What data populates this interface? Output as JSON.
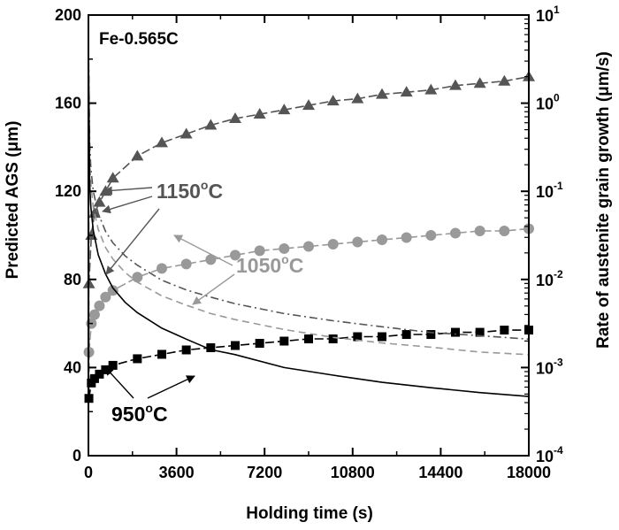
{
  "chart_data": {
    "type": "scatter",
    "sample_label": "Fe-0.565C",
    "xlabel": "Holding time (s)",
    "ylabel_left": "Predicted AGS (μm)",
    "ylabel_right": "Rate of austenite grain growth (μm/s)",
    "x_range": [
      0,
      18000
    ],
    "y_left_range": [
      0,
      200
    ],
    "y_right_range_log10": [
      -4,
      1
    ],
    "x_ticks": [
      0,
      3600,
      7200,
      10800,
      14400,
      18000
    ],
    "y_left_ticks": [
      0,
      40,
      80,
      120,
      160,
      200
    ],
    "y_right_ticks": [
      {
        "base": "10",
        "exp": "1",
        "value": 10
      },
      {
        "base": "10",
        "exp": "0",
        "value": 1
      },
      {
        "base": "10",
        "exp": "-1",
        "value": 0.1
      },
      {
        "base": "10",
        "exp": "-2",
        "value": 0.01
      },
      {
        "base": "10",
        "exp": "-3",
        "value": 0.001
      },
      {
        "base": "10",
        "exp": "-4",
        "value": 0.0001
      }
    ],
    "grid": false,
    "series": [
      {
        "name": "1150°C",
        "axis": "left",
        "marker": "triangle",
        "color": "#555555",
        "x": [
          20,
          120,
          250,
          450,
          700,
          1000,
          2000,
          3000,
          4000,
          5000,
          6000,
          7000,
          8000,
          9000,
          10000,
          11000,
          12000,
          13000,
          14000,
          15000,
          16000,
          17000,
          18000
        ],
        "y": [
          78,
          100,
          110,
          115,
          120,
          126,
          136,
          142,
          146,
          150,
          153,
          155,
          157,
          159,
          161,
          162,
          164,
          165,
          166,
          168,
          169,
          170,
          172
        ]
      },
      {
        "name": "1050°C",
        "axis": "left",
        "marker": "circle",
        "color": "#999999",
        "x": [
          20,
          120,
          250,
          450,
          700,
          1000,
          2000,
          3000,
          4000,
          5000,
          6000,
          7000,
          8000,
          9000,
          10000,
          11000,
          12000,
          13000,
          14000,
          15000,
          16000,
          17000,
          18000
        ],
        "y": [
          47,
          60,
          64,
          68,
          72,
          75,
          81,
          85,
          87,
          89,
          91,
          93,
          94,
          95,
          96,
          97,
          98,
          99,
          100,
          101,
          102,
          102,
          103
        ]
      },
      {
        "name": "950°C",
        "axis": "left",
        "marker": "square",
        "color": "#000000",
        "x": [
          20,
          120,
          250,
          450,
          700,
          1000,
          2000,
          3000,
          4000,
          5000,
          6000,
          7000,
          8000,
          9000,
          10000,
          11000,
          12000,
          13000,
          14000,
          15000,
          16000,
          17000,
          18000
        ],
        "y": [
          26,
          33,
          35,
          37,
          39,
          41,
          44,
          46,
          48,
          49,
          50,
          51,
          52,
          53,
          53,
          54,
          54,
          55,
          55,
          56,
          56,
          57,
          57
        ]
      },
      {
        "name": "1150°C",
        "axis": "right",
        "line": "dash-dot",
        "color": "#555555",
        "x": [
          50,
          100,
          200,
          400,
          700,
          1000,
          1500,
          2000,
          3000,
          4000,
          5000,
          6000,
          8000,
          10000,
          12000,
          14000,
          16000,
          18000
        ],
        "y": [
          0.35,
          0.18,
          0.1,
          0.056,
          0.035,
          0.026,
          0.0185,
          0.0145,
          0.0098,
          0.0076,
          0.0063,
          0.0053,
          0.0041,
          0.0034,
          0.0029,
          0.0025,
          0.0023,
          0.0021
        ]
      },
      {
        "name": "1050°C",
        "axis": "right",
        "line": "dashed",
        "color": "#999999",
        "x": [
          50,
          100,
          200,
          400,
          700,
          1000,
          1500,
          2000,
          3000,
          4000,
          5000,
          6000,
          8000,
          10000,
          12000,
          14000,
          16000,
          18000
        ],
        "y": [
          0.22,
          0.12,
          0.065,
          0.037,
          0.023,
          0.017,
          0.012,
          0.0093,
          0.0065,
          0.0051,
          0.0041,
          0.0035,
          0.0027,
          0.0022,
          0.0019,
          0.0017,
          0.0015,
          0.0014
        ]
      },
      {
        "name": "950°C",
        "axis": "right",
        "line": "solid",
        "color": "#000000",
        "x": [
          50,
          100,
          200,
          400,
          700,
          1000,
          1500,
          2000,
          3000,
          4000,
          5000,
          6000,
          8000,
          10000,
          12000,
          14000,
          16000,
          18000
        ],
        "y": [
          0.12,
          0.065,
          0.036,
          0.019,
          0.0115,
          0.008,
          0.0055,
          0.0042,
          0.0028,
          0.0021,
          0.0016,
          0.0014,
          0.001,
          0.00082,
          0.00068,
          0.00059,
          0.00052,
          0.00047
        ]
      }
    ],
    "annotations": [
      {
        "text": "1150",
        "sup": "o",
        "suffix": "C",
        "color": "#555555"
      },
      {
        "text": "1050",
        "sup": "o",
        "suffix": "C",
        "color": "#999999"
      },
      {
        "text": "950",
        "sup": "o",
        "suffix": "C",
        "color": "#000000"
      }
    ]
  }
}
